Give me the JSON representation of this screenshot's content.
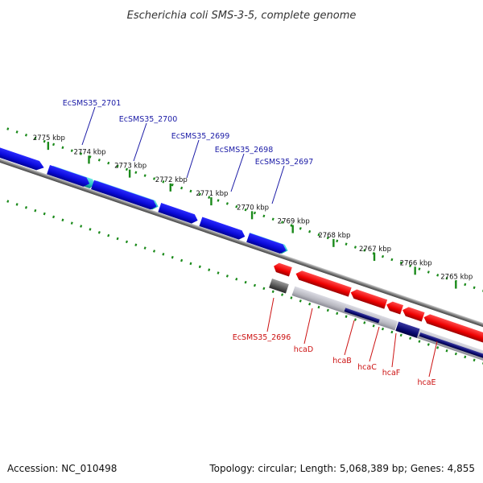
{
  "title": "Escherichia coli SMS-3-5, complete genome",
  "footer": {
    "accession": "Accession: NC_010498",
    "summary": "Topology: circular; Length: 5,068,389 bp; Genes: 4,855"
  },
  "colors": {
    "forward_gene": "#1010e0",
    "forward_highlight": "#22c4c4",
    "reverse_gene": "#ee0000",
    "reverse_pseudo": "#555555",
    "reverse_rna_light": "#b8b8c0",
    "reverse_rna_dark": "#0a0a70",
    "backbone": "#777777",
    "tick": "#1a8a1a",
    "label_forward": "#1a1aa6",
    "label_reverse": "#cc1111"
  },
  "ruler": {
    "unit": "kbp",
    "ticks": [
      {
        "label": "2775 kbp",
        "kbp": 2775
      },
      {
        "label": "2774 kbp",
        "kbp": 2774
      },
      {
        "label": "2773 kbp",
        "kbp": 2773
      },
      {
        "label": "2772 kbp",
        "kbp": 2772
      },
      {
        "label": "2771 kbp",
        "kbp": 2771
      },
      {
        "label": "2770 kbp",
        "kbp": 2770
      },
      {
        "label": "2769 kbp",
        "kbp": 2769
      },
      {
        "label": "2768 kbp",
        "kbp": 2768
      },
      {
        "label": "2767 kbp",
        "kbp": 2767
      },
      {
        "label": "2766 kbp",
        "kbp": 2766
      },
      {
        "label": "2765 kbp",
        "kbp": 2765
      }
    ]
  },
  "forward_labels": [
    {
      "name": "EcSMS35_2701"
    },
    {
      "name": "EcSMS35_2700"
    },
    {
      "name": "EcSMS35_2699"
    },
    {
      "name": "EcSMS35_2698"
    },
    {
      "name": "EcSMS35_2697"
    }
  ],
  "reverse_labels": [
    {
      "name": "EcSMS35_2696"
    },
    {
      "name": "hcaD"
    },
    {
      "name": "hcaB"
    },
    {
      "name": "hcaC"
    },
    {
      "name": "hcaF"
    },
    {
      "name": "hcaE"
    }
  ]
}
